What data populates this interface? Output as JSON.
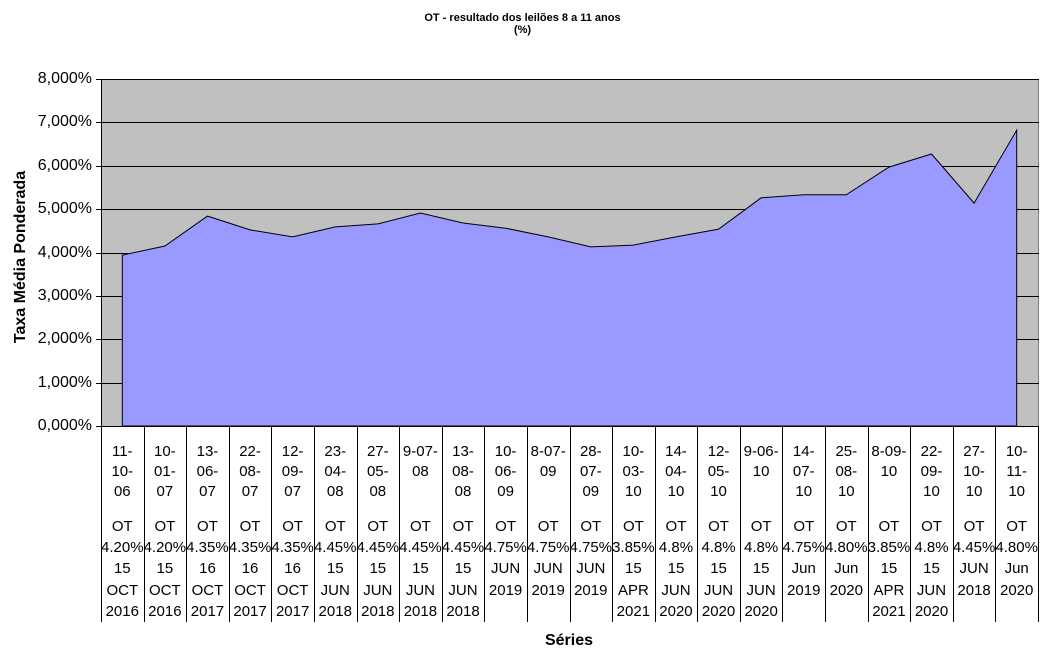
{
  "chart_data": {
    "type": "area",
    "title": "OT - resultado dos leilões 8 a 11 anos",
    "subtitle": "(%)",
    "xlabel": "Séries",
    "ylabel": "Taxa Média Ponderada",
    "ylim": [
      0,
      8
    ],
    "y_ticks": [
      0,
      1,
      2,
      3,
      4,
      5,
      6,
      7,
      8
    ],
    "y_tick_labels": [
      "0,000%",
      "1,000%",
      "2,000%",
      "3,000%",
      "4,000%",
      "5,000%",
      "6,000%",
      "7,000%",
      "8,000%"
    ],
    "grid": true,
    "categories": [
      "11-10-06",
      "10-01-07",
      "13-06-07",
      "22-08-07",
      "12-09-07",
      "23-04-08",
      "27-05-08",
      "9-07-08",
      "13-08-08",
      "10-06-09",
      "8-07-09",
      "28-07-09",
      "10-03-10",
      "14-04-10",
      "12-05-10",
      "9-06-10",
      "14-07-10",
      "25-08-10",
      "8-09-10",
      "22-09-10",
      "27-10-10",
      "10-11-10"
    ],
    "category_sublabels": [
      "OT 4.20% 15 OCT 2016",
      "OT 4.20% 15 OCT 2016",
      "OT 4.35% 16 OCT 2017",
      "OT 4.35% 16 OCT 2017",
      "OT 4.35% 16 OCT 2017",
      "OT 4.45% 15 JUN 2018",
      "OT 4.45% 15 JUN 2018",
      "OT 4.45% 15 JUN 2018",
      "OT 4.45% 15 JUN 2018",
      "OT 4.75% JUN 2019",
      "OT 4.75% JUN 2019",
      "OT 4.75% JUN 2019",
      "OT 3.85% 15 APR 2021",
      "OT 4.8% 15 JUN 2020",
      "OT 4.8% 15 JUN 2020",
      "OT 4.8% 15 JUN 2020",
      "OT 4.75% Jun 2019",
      "OT 4.80% Jun 2020",
      "OT 3.85% 15 APR 2021",
      "OT 4.8% 15 JUN 2020",
      "OT 4.45% JUN 2018",
      "OT 4.80% Jun 2020"
    ],
    "values": [
      3.94,
      4.15,
      4.84,
      4.52,
      4.36,
      4.59,
      4.66,
      4.91,
      4.68,
      4.56,
      4.36,
      4.13,
      4.17,
      4.36,
      4.54,
      5.26,
      5.33,
      5.33,
      5.97,
      6.27,
      5.14,
      6.82
    ],
    "colors": {
      "area_fill": "#9999FF",
      "area_border": "#000000",
      "plot_background": "#C0C0C0",
      "plot_border": "#808080",
      "gridlines": "#000000",
      "axis": "#000000"
    }
  }
}
